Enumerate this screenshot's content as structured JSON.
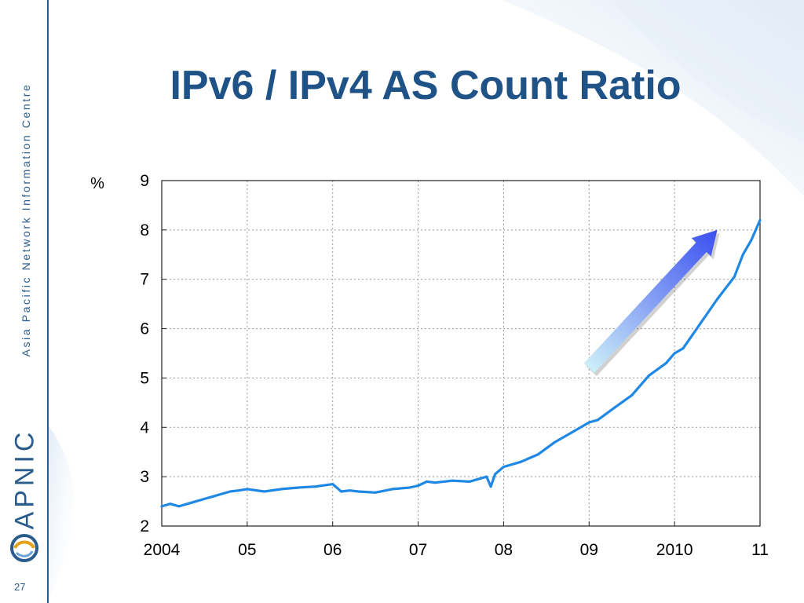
{
  "slide": {
    "title": "IPv6 / IPv4 AS Count Ratio",
    "organization": "Asia Pacific Network Information Centre",
    "logo_text": "APNIC",
    "page_number": "27"
  },
  "colors": {
    "title": "#1f5286",
    "brand": "#2b5d8c",
    "series": "#1f88e5",
    "arrow_start": "#cdeef8",
    "arrow_end": "#3a4ff0"
  },
  "chart_data": {
    "type": "line",
    "title": "",
    "xlabel": "",
    "ylabel": "%",
    "xlim": [
      2004.0,
      2011.0
    ],
    "ylim": [
      2,
      9
    ],
    "x_ticks": [
      2004,
      2005,
      2006,
      2007,
      2008,
      2009,
      2010,
      2011
    ],
    "x_tick_labels": [
      "2004",
      "05",
      "06",
      "07",
      "08",
      "09",
      "2010",
      "11"
    ],
    "y_ticks": [
      2,
      3,
      4,
      5,
      6,
      7,
      8,
      9
    ],
    "y_tick_labels": [
      "2",
      "3",
      "4",
      "5",
      "6",
      "7",
      "8",
      "9"
    ],
    "grid": true,
    "legend": "none",
    "annotations": [
      {
        "type": "arrow",
        "description": "upward trend arrow",
        "from": [
          2009.0,
          5.2
        ],
        "to": [
          2010.5,
          8.0
        ]
      }
    ],
    "series": [
      {
        "x": [
          2004.0,
          2004.1,
          2004.2,
          2004.3,
          2004.4,
          2004.5,
          2004.6,
          2004.7,
          2004.8,
          2004.9,
          2005.0,
          2005.2,
          2005.4,
          2005.6,
          2005.8,
          2006.0,
          2006.1,
          2006.2,
          2006.3,
          2006.5,
          2006.7,
          2006.9,
          2007.0,
          2007.1,
          2007.2,
          2007.4,
          2007.6,
          2007.7,
          2007.8,
          2007.85,
          2007.9,
          2008.0,
          2008.2,
          2008.4,
          2008.6,
          2008.8,
          2009.0,
          2009.1,
          2009.3,
          2009.5,
          2009.7,
          2009.9,
          2010.0,
          2010.1,
          2010.3,
          2010.5,
          2010.7,
          2010.8,
          2010.9,
          2011.0
        ],
        "y": [
          2.4,
          2.45,
          2.4,
          2.45,
          2.5,
          2.55,
          2.6,
          2.65,
          2.7,
          2.72,
          2.75,
          2.7,
          2.75,
          2.78,
          2.8,
          2.85,
          2.7,
          2.72,
          2.7,
          2.68,
          2.75,
          2.78,
          2.82,
          2.9,
          2.88,
          2.92,
          2.9,
          2.95,
          3.0,
          2.8,
          3.05,
          3.2,
          3.3,
          3.45,
          3.7,
          3.9,
          4.1,
          4.15,
          4.4,
          4.65,
          5.05,
          5.3,
          5.5,
          5.6,
          6.1,
          6.6,
          7.05,
          7.5,
          7.8,
          8.2
        ]
      }
    ]
  }
}
